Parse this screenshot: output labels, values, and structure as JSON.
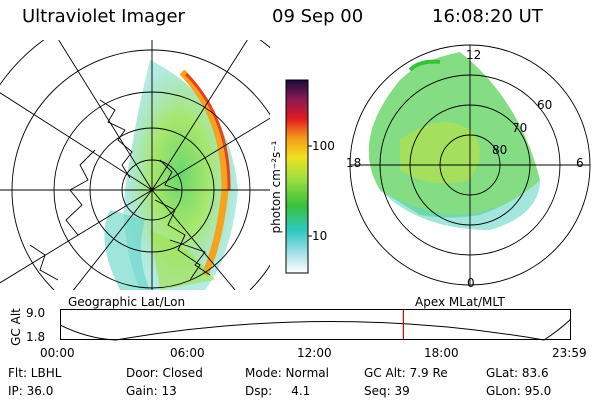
{
  "header": {
    "instrument": "Ultraviolet Imager",
    "date": "09 Sep 00",
    "time": "16:08:20 UT"
  },
  "left_panel": {
    "label": "Geographic Lat/Lon"
  },
  "right_panel": {
    "label": "Apex MLat/MLT",
    "lat_labels": [
      "60",
      "70",
      "80"
    ],
    "mlt_labels": [
      "12",
      "18",
      "6",
      "0"
    ]
  },
  "colorbar": {
    "unit_label": "photon cm⁻²s⁻¹",
    "ticks": [
      "100",
      "10"
    ]
  },
  "altitude_plot": {
    "y_label": "GC Alt",
    "y_ticks": [
      "9.0",
      "1.8"
    ],
    "x_ticks": [
      "00:00",
      "06:00",
      "12:00",
      "18:00",
      "23:59"
    ],
    "current_time_fraction": 0.672
  },
  "info": {
    "row1": {
      "filter": "Flt: LBHL",
      "door": "Door: Closed",
      "mode": "Mode: Normal",
      "gc_alt": "GC Alt: 7.9 Re",
      "glat": "GLat:  83.6"
    },
    "row2": {
      "ip": "IP: 36.0",
      "gain": "Gain: 13",
      "dsp": "Dsp:     4.1",
      "seq": "Seq: 39",
      "glon": "GLon:  95.0"
    }
  },
  "colors": {
    "current_time_marker": "#e00000",
    "grid": "#000000"
  }
}
